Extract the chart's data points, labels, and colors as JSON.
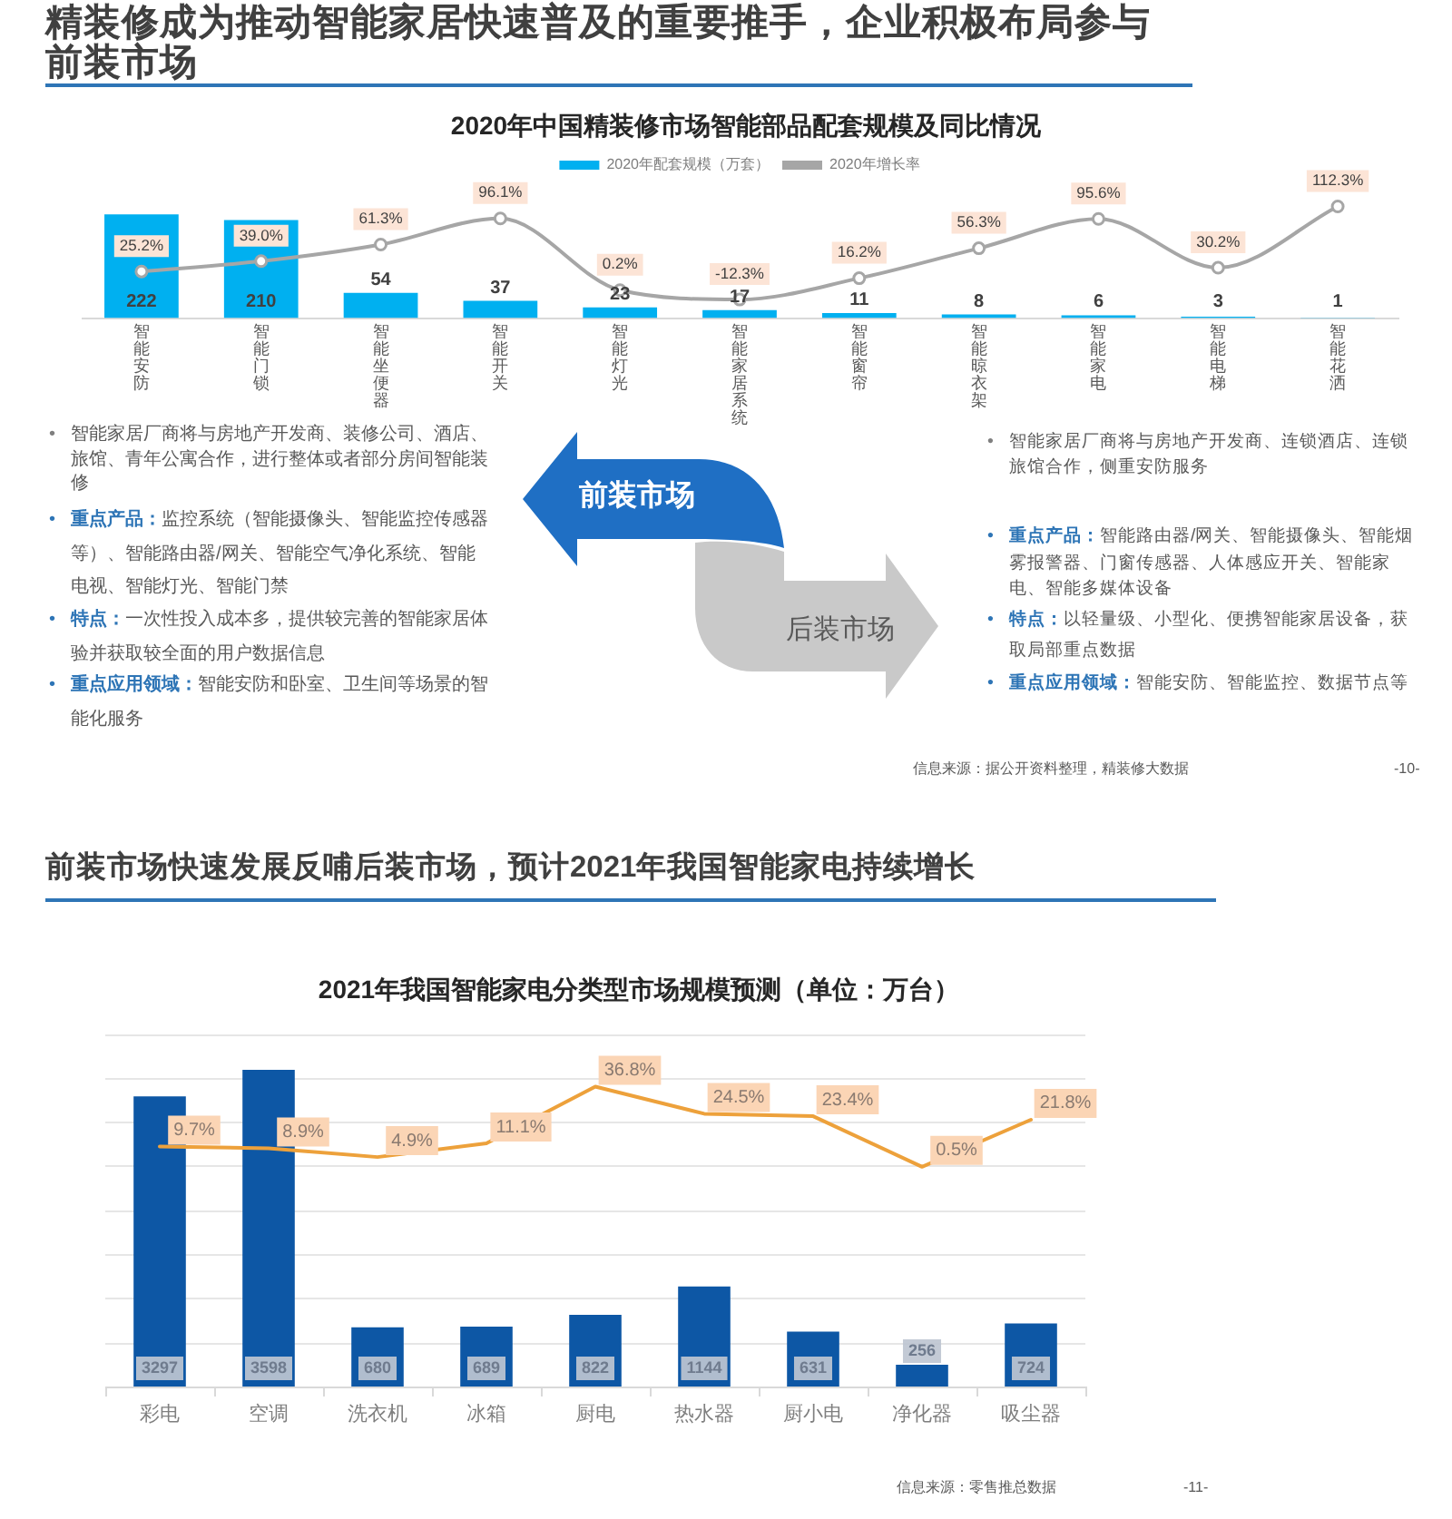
{
  "chart_data": [
    {
      "type": "bar",
      "title": "精装修成为推动智能家居快速普及的重要推手，企业积极布局参与前装市场",
      "subtitle": "2020年中国精装修市场智能部品配套规模及同比情况",
      "categories": [
        "智能安防",
        "智能门锁",
        "智能坐便器",
        "智能开关",
        "智能灯光",
        "智能家居系统",
        "智能窗帘",
        "智能晾衣架",
        "智能家电",
        "智能电梯",
        "智能花洒"
      ],
      "series": [
        {
          "name": "2020年配套规模（万套）",
          "type": "bar",
          "color": "#00b0f0",
          "values": [
            222,
            210,
            54,
            37,
            23,
            17,
            11,
            8,
            6,
            3,
            1
          ],
          "value_labels": [
            "222",
            "210",
            "54",
            "37",
            "23",
            "17",
            "11",
            "8",
            "6",
            "3",
            "1"
          ]
        },
        {
          "name": "2020年增长率",
          "type": "line",
          "axis": "y2",
          "color": "#a6a6a6",
          "marker": "circle",
          "values": [
            25.2,
            39.0,
            61.3,
            96.1,
            0.2,
            -12.3,
            16.2,
            56.3,
            95.6,
            30.2,
            112.3
          ],
          "value_labels": [
            "25.2%",
            "39.0%",
            "61.3%",
            "96.1%",
            "0.2%",
            "-12.3%",
            "16.2%",
            "56.3%",
            "95.6%",
            "30.2%",
            "112.3%"
          ]
        }
      ],
      "legend": "top",
      "tick_labels": "x"
    },
    {
      "type": "other",
      "annotations": [
        "• 智能家居厂商将与房地产开发商、装修公司、酒店、旅馆、青年公寓合作，进行整体或者部分房间智能装修",
        "• 重点产品：监控系统（智能摄像头、智能监控传感器等）、智能路由器/网关、智能空气净化系统、智能电视、智能灯光、智能门禁",
        "• 特点：一次性投入成本多，提供较完善的智能家居体验并获取较全面的用户数据信息",
        "• 重点应用领域：智能安防和卧室、卫生间等场景的智能化服务",
        "前装市场",
        "后装市场",
        "• 智能家居厂商将与房地产开发商、连锁酒店、连锁旅馆合作，侧重安防服务",
        "• 重点产品：智能路由器/网关、智能摄像头、智能烟雾报警器、门窗传感器、人体感应开关、智能家电、智能多媒体设备",
        "• 特点：以轻量级、小型化、便携智能家居设备，获取局部重点数据",
        "• 重点应用领域：智能安防、智能监控、数据节点等",
        "信息来源：据公开资料整理，精装修大数据",
        "-10-"
      ]
    },
    {
      "type": "bar",
      "title": "前装市场快速发展反哺后装市场，预计2021年我国智能家电持续增长",
      "subtitle": "2021年我国智能家电分类型市场规模预测（单位：万台）",
      "categories": [
        "彩电",
        "空调",
        "洗衣机",
        "冰箱",
        "厨电",
        "热水器",
        "厨小电",
        "净化器",
        "吸尘器"
      ],
      "series": [
        {
          "type": "bar",
          "color": "#0d57a5",
          "values": [
            3297,
            3598,
            680,
            689,
            822,
            1144,
            631,
            256,
            724
          ],
          "value_labels": [
            "3297",
            "3598",
            "680",
            "689",
            "822",
            "1144",
            "631",
            "256",
            "724"
          ]
        },
        {
          "type": "line",
          "axis": "y2",
          "color": "#eda13b",
          "values": [
            9.7,
            8.9,
            4.9,
            11.1,
            36.8,
            24.5,
            23.4,
            0.5,
            21.8
          ],
          "value_labels": [
            "9.7%",
            "8.9%",
            "4.9%",
            "11.1%",
            "36.8%",
            "24.5%",
            "23.4%",
            "0.5%",
            "21.8%"
          ]
        }
      ],
      "ylim": [
        0,
        4000
      ],
      "yticks": [
        {
          "value": 0,
          "label": null
        },
        {
          "value": 500,
          "label": null
        },
        {
          "value": 1000,
          "label": null
        },
        {
          "value": 1500,
          "label": null
        },
        {
          "value": 2000,
          "label": null
        },
        {
          "value": 2500,
          "label": null
        },
        {
          "value": 3000,
          "label": null
        },
        {
          "value": 3500,
          "label": null
        },
        {
          "value": 4000,
          "label": null
        }
      ],
      "grid": "y",
      "tick_labels": "x",
      "annotations": [
        "信息来源：零售推总数据",
        "-11-"
      ]
    }
  ]
}
